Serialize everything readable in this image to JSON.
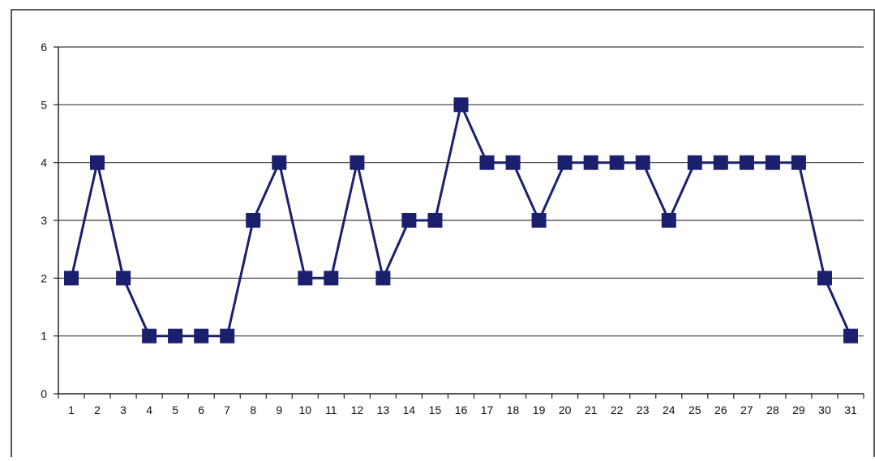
{
  "chart_data": {
    "type": "line",
    "title": "",
    "xlabel": "",
    "ylabel": "",
    "ylim": [
      0,
      6
    ],
    "yticks": [
      0,
      1,
      2,
      3,
      4,
      5,
      6
    ],
    "grid": true,
    "legend": "none",
    "line_color": "#1a1f6e",
    "marker": "square",
    "x": [
      1,
      2,
      3,
      4,
      5,
      6,
      7,
      8,
      9,
      10,
      11,
      12,
      13,
      14,
      15,
      16,
      17,
      18,
      19,
      20,
      21,
      22,
      23,
      24,
      25,
      26,
      27,
      28,
      29,
      30,
      31
    ],
    "series": [
      {
        "values": [
          2,
          4,
          2,
          1,
          1,
          1,
          1,
          3,
          4,
          2,
          2,
          4,
          2,
          3,
          3,
          5,
          4,
          4,
          3,
          4,
          4,
          4,
          4,
          3,
          4,
          4,
          4,
          4,
          4,
          2,
          1
        ]
      }
    ]
  }
}
